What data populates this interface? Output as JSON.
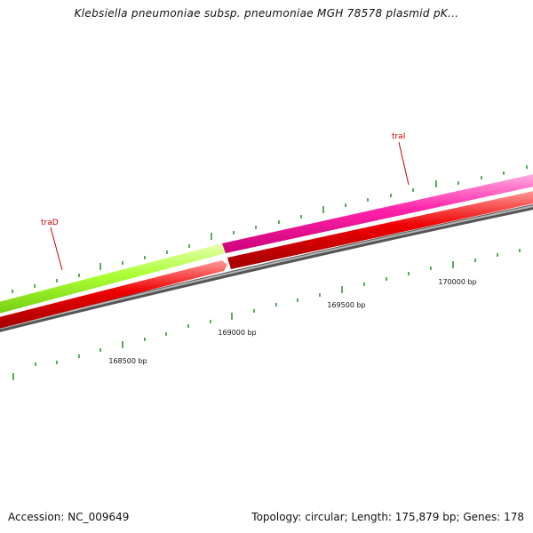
{
  "title": "Klebsiella pneumoniae subsp. pneumoniae MGH 78578 plasmid pK...",
  "footer": {
    "accession": "Accession: NC_009649",
    "summary": "Topology: circular; Length: 175,879 bp; Genes: 178"
  },
  "colors": {
    "traD_feature": "#aaff33",
    "traI_feature": "#ff22aa",
    "cds_track": "#ee0000",
    "backbone": "#808080",
    "tick": "#2a8a2a",
    "gene_label": "#cc0000"
  },
  "features": [
    {
      "name": "traD",
      "strand": "+"
    },
    {
      "name": "traI",
      "strand": "+"
    }
  ],
  "bp_labels": [
    "168500 bp",
    "169000 bp",
    "169500 bp",
    "170000 bp"
  ]
}
